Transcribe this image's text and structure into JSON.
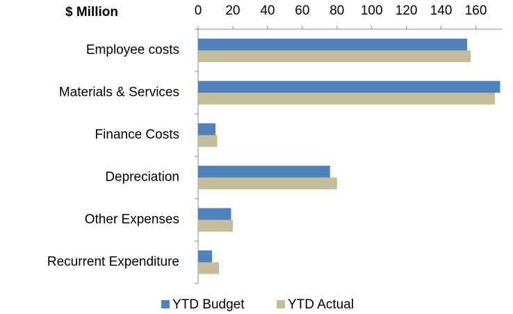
{
  "chart_data": {
    "type": "hbar",
    "title": "$ Million",
    "categories": [
      "Employee costs",
      "Materials & Services",
      "Finance Costs",
      "Depreciation",
      "Other Expenses",
      "Recurrent Expenditure"
    ],
    "series": [
      {
        "name": "YTD Budget",
        "color": "#4f81bd",
        "values": [
          155,
          174,
          10,
          76,
          19,
          8
        ]
      },
      {
        "name": "YTD Actual",
        "color": "#c4bd97",
        "values": [
          157,
          171,
          11,
          80,
          20,
          12
        ]
      }
    ],
    "xlim": [
      0,
      175
    ],
    "xticks": [
      0,
      20,
      40,
      60,
      80,
      100,
      120,
      140,
      160
    ],
    "grid": false,
    "legend": "bottom"
  }
}
